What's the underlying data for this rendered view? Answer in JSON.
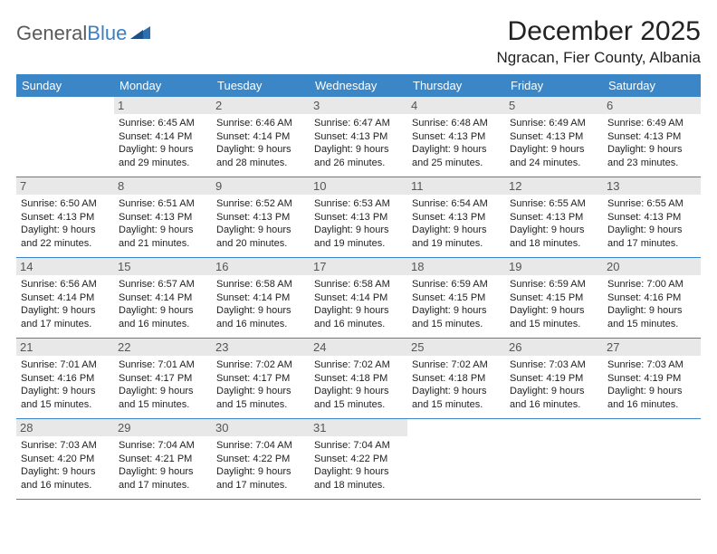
{
  "logo": {
    "word1": "General",
    "word2": "Blue"
  },
  "title": "December 2025",
  "location": "Ngracan, Fier County, Albania",
  "colors": {
    "header_bg": "#3b86c7",
    "header_text": "#ffffff",
    "daynum_bg": "#e8e8e8",
    "row_border": "#3b86c7",
    "text": "#222222",
    "logo_gray": "#5a5a5a",
    "logo_blue": "#3b7fc4"
  },
  "day_headers": [
    "Sunday",
    "Monday",
    "Tuesday",
    "Wednesday",
    "Thursday",
    "Friday",
    "Saturday"
  ],
  "weeks": [
    [
      {
        "num": "",
        "lines": []
      },
      {
        "num": "1",
        "lines": [
          "Sunrise: 6:45 AM",
          "Sunset: 4:14 PM",
          "Daylight: 9 hours",
          "and 29 minutes."
        ]
      },
      {
        "num": "2",
        "lines": [
          "Sunrise: 6:46 AM",
          "Sunset: 4:14 PM",
          "Daylight: 9 hours",
          "and 28 minutes."
        ]
      },
      {
        "num": "3",
        "lines": [
          "Sunrise: 6:47 AM",
          "Sunset: 4:13 PM",
          "Daylight: 9 hours",
          "and 26 minutes."
        ]
      },
      {
        "num": "4",
        "lines": [
          "Sunrise: 6:48 AM",
          "Sunset: 4:13 PM",
          "Daylight: 9 hours",
          "and 25 minutes."
        ]
      },
      {
        "num": "5",
        "lines": [
          "Sunrise: 6:49 AM",
          "Sunset: 4:13 PM",
          "Daylight: 9 hours",
          "and 24 minutes."
        ]
      },
      {
        "num": "6",
        "lines": [
          "Sunrise: 6:49 AM",
          "Sunset: 4:13 PM",
          "Daylight: 9 hours",
          "and 23 minutes."
        ]
      }
    ],
    [
      {
        "num": "7",
        "lines": [
          "Sunrise: 6:50 AM",
          "Sunset: 4:13 PM",
          "Daylight: 9 hours",
          "and 22 minutes."
        ]
      },
      {
        "num": "8",
        "lines": [
          "Sunrise: 6:51 AM",
          "Sunset: 4:13 PM",
          "Daylight: 9 hours",
          "and 21 minutes."
        ]
      },
      {
        "num": "9",
        "lines": [
          "Sunrise: 6:52 AM",
          "Sunset: 4:13 PM",
          "Daylight: 9 hours",
          "and 20 minutes."
        ]
      },
      {
        "num": "10",
        "lines": [
          "Sunrise: 6:53 AM",
          "Sunset: 4:13 PM",
          "Daylight: 9 hours",
          "and 19 minutes."
        ]
      },
      {
        "num": "11",
        "lines": [
          "Sunrise: 6:54 AM",
          "Sunset: 4:13 PM",
          "Daylight: 9 hours",
          "and 19 minutes."
        ]
      },
      {
        "num": "12",
        "lines": [
          "Sunrise: 6:55 AM",
          "Sunset: 4:13 PM",
          "Daylight: 9 hours",
          "and 18 minutes."
        ]
      },
      {
        "num": "13",
        "lines": [
          "Sunrise: 6:55 AM",
          "Sunset: 4:13 PM",
          "Daylight: 9 hours",
          "and 17 minutes."
        ]
      }
    ],
    [
      {
        "num": "14",
        "lines": [
          "Sunrise: 6:56 AM",
          "Sunset: 4:14 PM",
          "Daylight: 9 hours",
          "and 17 minutes."
        ]
      },
      {
        "num": "15",
        "lines": [
          "Sunrise: 6:57 AM",
          "Sunset: 4:14 PM",
          "Daylight: 9 hours",
          "and 16 minutes."
        ]
      },
      {
        "num": "16",
        "lines": [
          "Sunrise: 6:58 AM",
          "Sunset: 4:14 PM",
          "Daylight: 9 hours",
          "and 16 minutes."
        ]
      },
      {
        "num": "17",
        "lines": [
          "Sunrise: 6:58 AM",
          "Sunset: 4:14 PM",
          "Daylight: 9 hours",
          "and 16 minutes."
        ]
      },
      {
        "num": "18",
        "lines": [
          "Sunrise: 6:59 AM",
          "Sunset: 4:15 PM",
          "Daylight: 9 hours",
          "and 15 minutes."
        ]
      },
      {
        "num": "19",
        "lines": [
          "Sunrise: 6:59 AM",
          "Sunset: 4:15 PM",
          "Daylight: 9 hours",
          "and 15 minutes."
        ]
      },
      {
        "num": "20",
        "lines": [
          "Sunrise: 7:00 AM",
          "Sunset: 4:16 PM",
          "Daylight: 9 hours",
          "and 15 minutes."
        ]
      }
    ],
    [
      {
        "num": "21",
        "lines": [
          "Sunrise: 7:01 AM",
          "Sunset: 4:16 PM",
          "Daylight: 9 hours",
          "and 15 minutes."
        ]
      },
      {
        "num": "22",
        "lines": [
          "Sunrise: 7:01 AM",
          "Sunset: 4:17 PM",
          "Daylight: 9 hours",
          "and 15 minutes."
        ]
      },
      {
        "num": "23",
        "lines": [
          "Sunrise: 7:02 AM",
          "Sunset: 4:17 PM",
          "Daylight: 9 hours",
          "and 15 minutes."
        ]
      },
      {
        "num": "24",
        "lines": [
          "Sunrise: 7:02 AM",
          "Sunset: 4:18 PM",
          "Daylight: 9 hours",
          "and 15 minutes."
        ]
      },
      {
        "num": "25",
        "lines": [
          "Sunrise: 7:02 AM",
          "Sunset: 4:18 PM",
          "Daylight: 9 hours",
          "and 15 minutes."
        ]
      },
      {
        "num": "26",
        "lines": [
          "Sunrise: 7:03 AM",
          "Sunset: 4:19 PM",
          "Daylight: 9 hours",
          "and 16 minutes."
        ]
      },
      {
        "num": "27",
        "lines": [
          "Sunrise: 7:03 AM",
          "Sunset: 4:19 PM",
          "Daylight: 9 hours",
          "and 16 minutes."
        ]
      }
    ],
    [
      {
        "num": "28",
        "lines": [
          "Sunrise: 7:03 AM",
          "Sunset: 4:20 PM",
          "Daylight: 9 hours",
          "and 16 minutes."
        ]
      },
      {
        "num": "29",
        "lines": [
          "Sunrise: 7:04 AM",
          "Sunset: 4:21 PM",
          "Daylight: 9 hours",
          "and 17 minutes."
        ]
      },
      {
        "num": "30",
        "lines": [
          "Sunrise: 7:04 AM",
          "Sunset: 4:22 PM",
          "Daylight: 9 hours",
          "and 17 minutes."
        ]
      },
      {
        "num": "31",
        "lines": [
          "Sunrise: 7:04 AM",
          "Sunset: 4:22 PM",
          "Daylight: 9 hours",
          "and 18 minutes."
        ]
      },
      {
        "num": "",
        "lines": []
      },
      {
        "num": "",
        "lines": []
      },
      {
        "num": "",
        "lines": []
      }
    ]
  ]
}
